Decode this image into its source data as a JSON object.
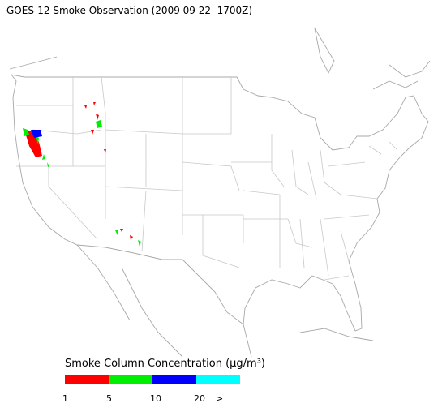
{
  "title": "GOES-12 Smoke Observation (2009 09 22  1700Z)",
  "legend": {
    "title": "Smoke Column Concentration (μg/m³)",
    "colors": [
      "#ff0000",
      "#00ee00",
      "#0000ff",
      "#00ffff"
    ],
    "ticks": [
      "1",
      "5",
      "10",
      "20",
      ">"
    ]
  }
}
